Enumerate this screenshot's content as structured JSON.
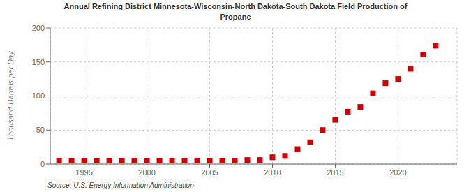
{
  "chart_data": {
    "type": "scatter",
    "title": "Annual Refining District Minnesota-Wisconsin-North Dakota-South Dakota Field Production of\nPropane",
    "ylabel": "Thousand Barrels per Day",
    "source": "Source: U.S. Energy Information Administration",
    "x": [
      1993,
      1994,
      1995,
      1996,
      1997,
      1998,
      1999,
      2000,
      2001,
      2002,
      2003,
      2004,
      2005,
      2006,
      2007,
      2008,
      2009,
      2010,
      2011,
      2012,
      2013,
      2014,
      2015,
      2016,
      2017,
      2018,
      2019,
      2020,
      2021,
      2022,
      2023
    ],
    "values": [
      5,
      5,
      5,
      5,
      5,
      5,
      5,
      5,
      5,
      5,
      5,
      5,
      5,
      5,
      5,
      6,
      6,
      10,
      12,
      22,
      32,
      50,
      65,
      77,
      84,
      104,
      119,
      125,
      140,
      161,
      174
    ],
    "color": "#cc0000",
    "marker": "square",
    "xlim": [
      1992.3,
      2024.7
    ],
    "xticks": [
      1995,
      2000,
      2005,
      2010,
      2015,
      2020
    ],
    "ylim": [
      0,
      200
    ],
    "yticks": [
      0,
      50,
      100,
      150,
      200
    ],
    "grid": true
  }
}
